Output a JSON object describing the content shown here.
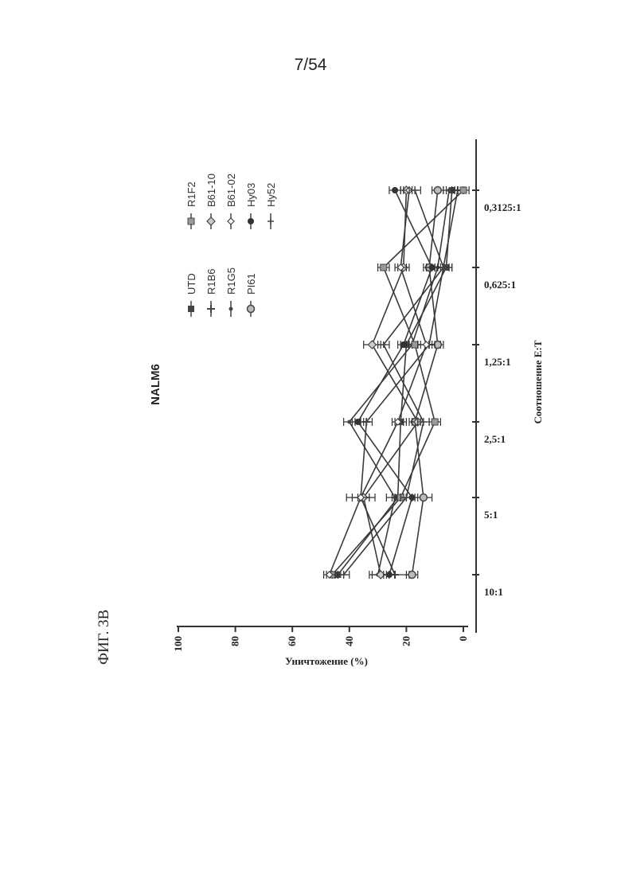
{
  "page_number": "7/54",
  "figure_label": "ФИГ. 3В",
  "chart_data": {
    "type": "line",
    "title": "NALM6",
    "xlabel": "Соотношение E:T",
    "ylabel": "Уничтожение (%)",
    "categories": [
      "10:1",
      "5:1",
      "2,5:1",
      "1,25:1",
      "0,625:1",
      "0,3125:1"
    ],
    "ylim": [
      0,
      100
    ],
    "yticks": [
      0,
      20,
      40,
      60,
      80,
      100
    ],
    "grid": false,
    "legend_position": "top",
    "series": [
      {
        "name": "UTD",
        "marker": "square",
        "values": [
          44,
          23,
          22,
          20,
          6,
          4
        ],
        "errors": [
          2,
          2,
          2,
          2,
          2,
          2
        ]
      },
      {
        "name": "R1B6",
        "marker": "plus",
        "values": [
          24,
          36,
          34,
          12,
          7,
          2
        ],
        "errors": [
          5,
          3,
          2,
          4,
          3,
          2
        ]
      },
      {
        "name": "R1G5",
        "marker": "dot",
        "values": [
          30,
          24,
          40,
          18,
          9,
          5
        ],
        "errors": [
          3,
          3,
          2,
          2,
          2,
          2
        ]
      },
      {
        "name": "PI61",
        "marker": "ring",
        "values": [
          18,
          14,
          17,
          9,
          12,
          9
        ],
        "errors": [
          2,
          3,
          2,
          2,
          2,
          2
        ]
      },
      {
        "name": "R1F2",
        "marker": "square-hatched",
        "values": [
          46,
          22,
          10,
          17,
          28,
          0
        ],
        "errors": [
          2,
          2,
          2,
          2,
          2,
          2
        ]
      },
      {
        "name": "B61-10",
        "marker": "diamond",
        "values": [
          29,
          35,
          16,
          32,
          21,
          20
        ],
        "errors": [
          3,
          2,
          2,
          3,
          2,
          2
        ]
      },
      {
        "name": "B61-02",
        "marker": "diamond-small",
        "values": [
          47,
          36,
          23,
          13,
          22,
          19
        ],
        "errors": [
          2,
          5,
          2,
          3,
          2,
          2
        ]
      },
      {
        "name": "Hy03",
        "marker": "filled-dot",
        "values": [
          26,
          18,
          37,
          21,
          11,
          24
        ],
        "errors": [
          2,
          2,
          2,
          2,
          2,
          2
        ]
      },
      {
        "name": "Hy52",
        "marker": "tick",
        "values": [
          42,
          20,
          14,
          28,
          7,
          17
        ],
        "errors": [
          2,
          2,
          2,
          2,
          2,
          2
        ]
      }
    ]
  }
}
